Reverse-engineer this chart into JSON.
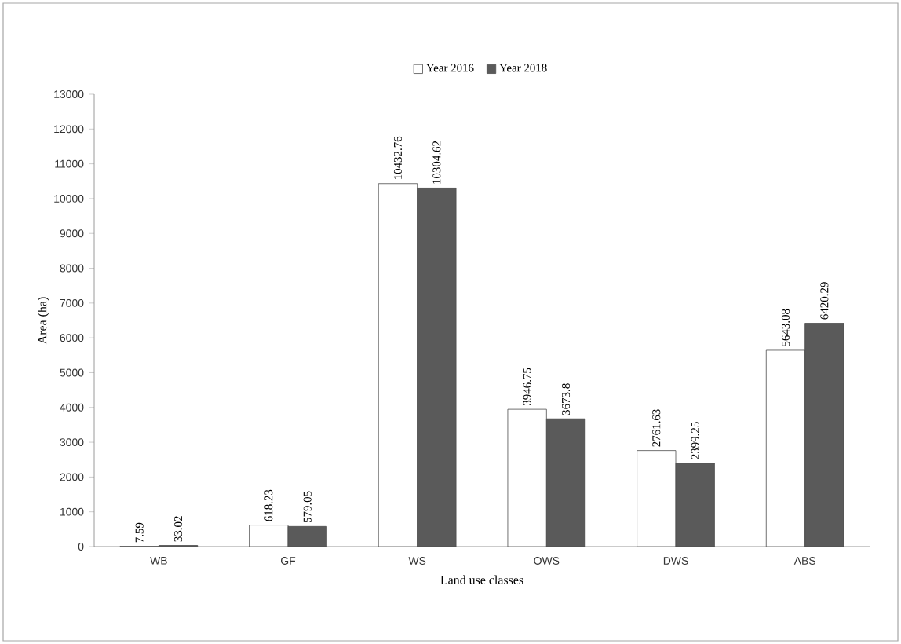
{
  "chart_data": {
    "type": "bar",
    "xlabel": "Land use classes",
    "ylabel": "Area (ha)",
    "categories": [
      "WB",
      "GF",
      "WS",
      "OWS",
      "DWS",
      "ABS"
    ],
    "series": [
      {
        "name": "Year 2016",
        "color": "#ffffff",
        "values": [
          7.59,
          618.23,
          10432.76,
          3946.75,
          2761.63,
          5643.08
        ]
      },
      {
        "name": "Year 2018",
        "color": "#5a5a5a",
        "values": [
          33.02,
          579.05,
          10304.62,
          3673.8,
          2399.25,
          6420.29
        ]
      }
    ],
    "ylim": [
      0,
      13000
    ],
    "yticks": [
      0,
      1000,
      2000,
      3000,
      4000,
      5000,
      6000,
      7000,
      8000,
      9000,
      10000,
      11000,
      12000,
      13000
    ],
    "data_labels": true,
    "legend": "top",
    "grid": false
  }
}
